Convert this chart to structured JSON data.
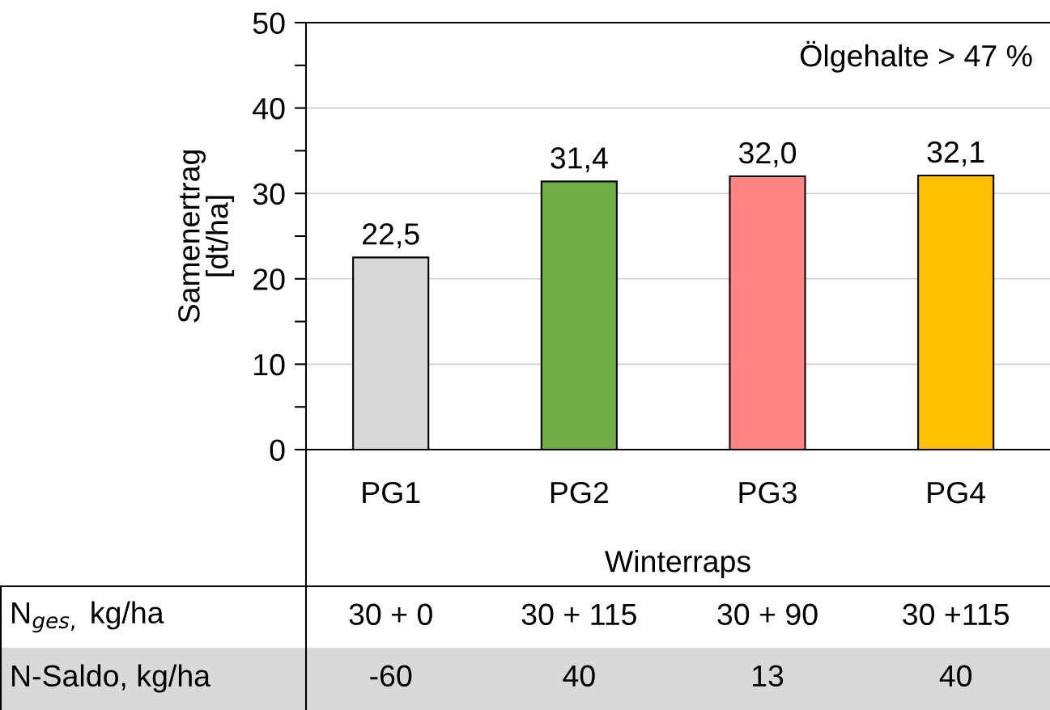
{
  "chart_data": {
    "type": "bar",
    "xlabel": "Winterraps",
    "ylabel": "Samenertrag\n[dt/ha]",
    "categories": [
      "PG1",
      "PG2",
      "PG3",
      "PG4"
    ],
    "values": [
      22.5,
      31.4,
      32.0,
      32.1
    ],
    "colors": [
      "#d9d9d9",
      "#70ad47",
      "#ff8585",
      "#ffc000"
    ],
    "value_labels": [
      "22,5",
      "31,4",
      "32,0",
      "32,1"
    ],
    "ylim": [
      0,
      50
    ],
    "yticks": [
      0,
      {
        "value": 5,
        "label": null
      },
      10,
      {
        "value": 15,
        "label": null
      },
      20,
      {
        "value": 25,
        "label": null
      },
      30,
      {
        "value": 35,
        "label": null
      },
      40,
      {
        "value": 45,
        "label": null
      },
      50
    ],
    "grid": "y",
    "annotations": [
      "Ölgehalte > 47 %",
      "N$_{ges,}$ kg/ha",
      "30 + 0",
      "30 + 115",
      "30 + 90",
      "30 +115",
      "N-Saldo, kg/ha",
      "-60",
      "40",
      "13",
      "40"
    ]
  }
}
